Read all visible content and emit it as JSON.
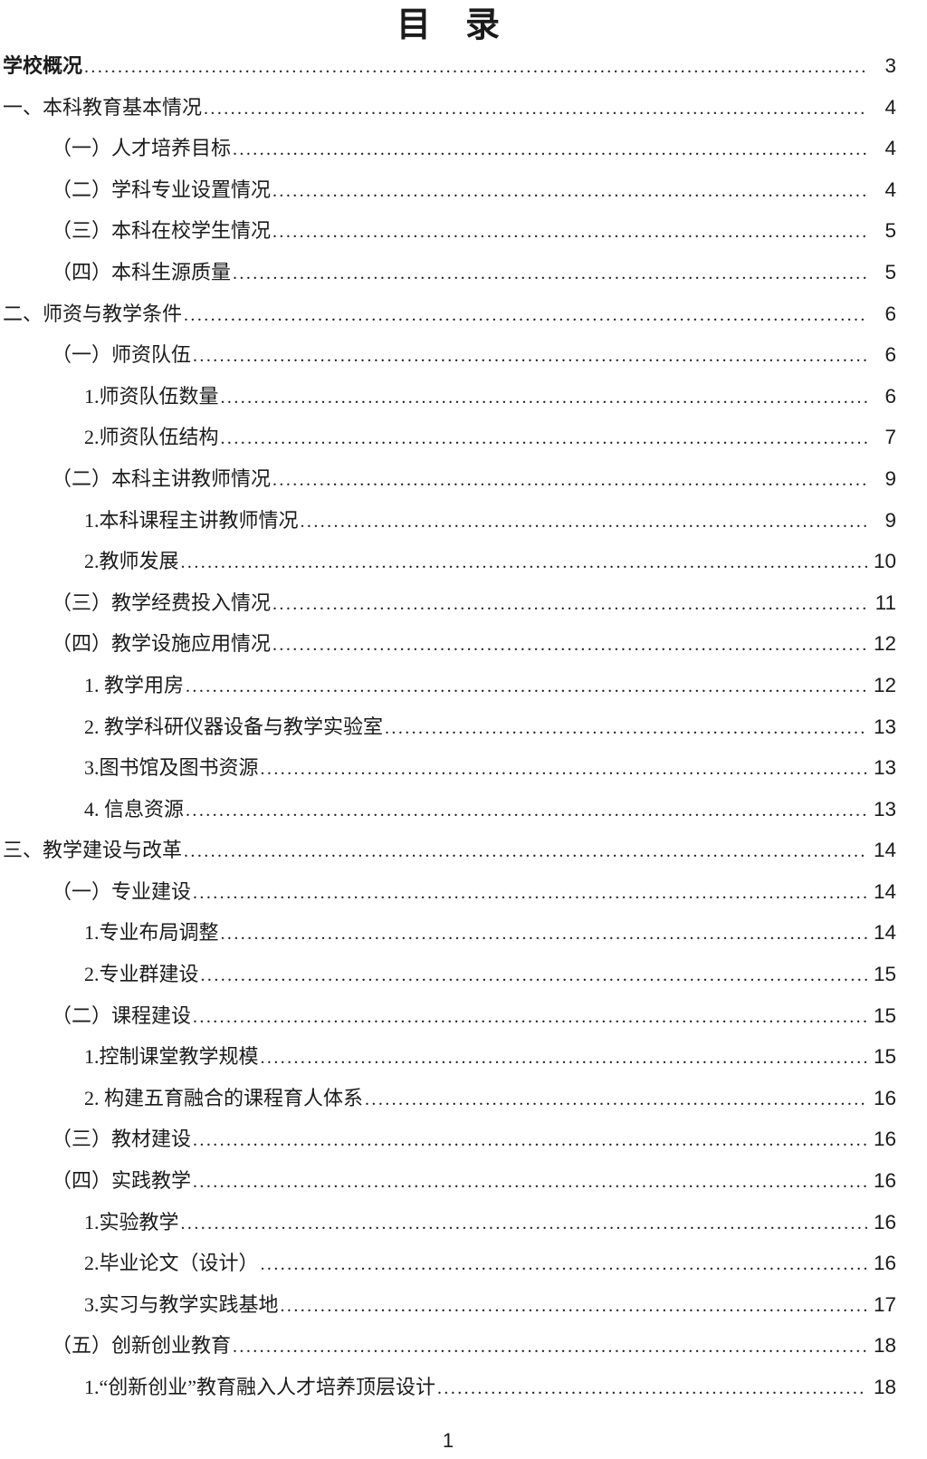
{
  "page": {
    "title": "目　录",
    "footer_page_number": "1"
  },
  "toc": {
    "entries": [
      {
        "label": "学校概况",
        "page": "3",
        "level": 0,
        "bold": true
      },
      {
        "label": "一、本科教育基本情况",
        "page": "4",
        "level": 0,
        "bold": false
      },
      {
        "label": "（一）人才培养目标",
        "page": "4",
        "level": 1,
        "bold": false
      },
      {
        "label": "（二）学科专业设置情况",
        "page": "4",
        "level": 1,
        "bold": false
      },
      {
        "label": "（三）本科在校学生情况",
        "page": "5",
        "level": 1,
        "bold": false
      },
      {
        "label": "（四）本科生源质量",
        "page": "5",
        "level": 1,
        "bold": false
      },
      {
        "label": "二、师资与教学条件",
        "page": "6",
        "level": 0,
        "bold": false
      },
      {
        "label": "（一）师资队伍",
        "page": "6",
        "level": 1,
        "bold": false
      },
      {
        "label": "1.师资队伍数量",
        "page": "6",
        "level": 2,
        "bold": false
      },
      {
        "label": "2.师资队伍结构",
        "page": "7",
        "level": 2,
        "bold": false
      },
      {
        "label": "（二）本科主讲教师情况",
        "page": "9",
        "level": 1,
        "bold": false
      },
      {
        "label": "1.本科课程主讲教师情况",
        "page": "9",
        "level": 2,
        "bold": false
      },
      {
        "label": "2.教师发展",
        "page": "10",
        "level": 2,
        "bold": false
      },
      {
        "label": "（三）教学经费投入情况",
        "page": "11",
        "level": 1,
        "bold": false
      },
      {
        "label": "（四）教学设施应用情况",
        "page": "12",
        "level": 1,
        "bold": false
      },
      {
        "label": "1. 教学用房",
        "page": "12",
        "level": 2,
        "bold": false
      },
      {
        "label": "2. 教学科研仪器设备与教学实验室",
        "page": "13",
        "level": 2,
        "bold": false
      },
      {
        "label": "3.图书馆及图书资源",
        "page": "13",
        "level": 2,
        "bold": false
      },
      {
        "label": "4. 信息资源",
        "page": "13",
        "level": 2,
        "bold": false
      },
      {
        "label": "三、教学建设与改革",
        "page": "14",
        "level": 0,
        "bold": false
      },
      {
        "label": "（一）专业建设",
        "page": "14",
        "level": 1,
        "bold": false
      },
      {
        "label": "1.专业布局调整",
        "page": "14",
        "level": 2,
        "bold": false
      },
      {
        "label": "2.专业群建设",
        "page": "15",
        "level": 2,
        "bold": false
      },
      {
        "label": "（二）课程建设",
        "page": "15",
        "level": 1,
        "bold": false
      },
      {
        "label": "1.控制课堂教学规模",
        "page": "15",
        "level": 2,
        "bold": false
      },
      {
        "label": "2. 构建五育融合的课程育人体系",
        "page": "16",
        "level": 2,
        "bold": false
      },
      {
        "label": "（三）教材建设",
        "page": "16",
        "level": 1,
        "bold": false
      },
      {
        "label": "（四）实践教学",
        "page": "16",
        "level": 1,
        "bold": false
      },
      {
        "label": "1.实验教学",
        "page": "16",
        "level": 2,
        "bold": false
      },
      {
        "label": "2.毕业论文（设计）",
        "page": "16",
        "level": 2,
        "bold": false
      },
      {
        "label": "3.实习与教学实践基地",
        "page": "17",
        "level": 2,
        "bold": false
      },
      {
        "label": "（五）创新创业教育",
        "page": "18",
        "level": 1,
        "bold": false
      },
      {
        "label": "1.“创新创业”教育融入人才培养顶层设计",
        "page": "18",
        "level": 2,
        "bold": false
      }
    ]
  }
}
